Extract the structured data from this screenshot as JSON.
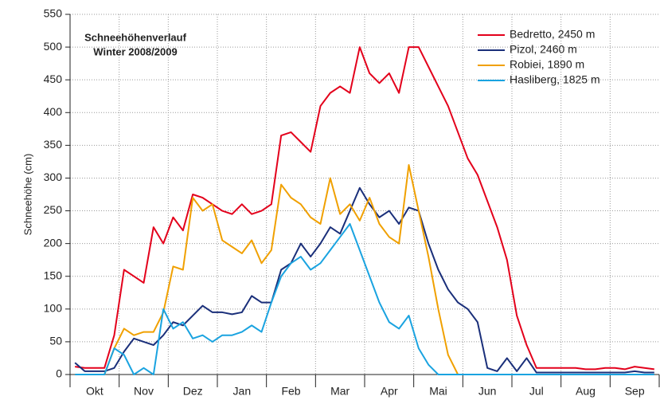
{
  "chart_data": {
    "type": "line",
    "title": "Schneehöhenverlauf",
    "subtitle": "Winter 2008/2009",
    "y_label": "Schneehöhe (cm)",
    "categories": [
      null,
      null,
      "Okt",
      null,
      null,
      null,
      null,
      "Nov",
      null,
      null,
      null,
      null,
      "Dez",
      null,
      null,
      null,
      null,
      "Jan",
      null,
      null,
      null,
      null,
      "Feb",
      null,
      null,
      null,
      null,
      "Mar",
      null,
      null,
      null,
      null,
      "Apr",
      null,
      null,
      null,
      null,
      "Mai",
      null,
      null,
      null,
      null,
      "Jun",
      null,
      null,
      null,
      null,
      "Jul",
      null,
      null,
      null,
      null,
      "Aug",
      null,
      null,
      null,
      null,
      "Sep",
      null,
      null
    ],
    "series": [
      {
        "name": "Bedretto, 2450 m",
        "color": "#e3001b",
        "values": [
          12,
          10,
          10,
          10,
          60,
          160,
          150,
          140,
          225,
          200,
          240,
          220,
          275,
          270,
          260,
          250,
          245,
          260,
          245,
          250,
          260,
          365,
          370,
          355,
          340,
          410,
          430,
          440,
          430,
          500,
          460,
          445,
          460,
          430,
          500,
          500,
          470,
          440,
          410,
          370,
          330,
          305,
          265,
          225,
          175,
          90,
          45,
          10,
          10,
          10,
          10,
          10,
          8,
          8,
          10,
          10,
          8,
          12,
          10,
          8
        ]
      },
      {
        "name": "Pizol, 2460 m",
        "color": "#1a2f7a",
        "values": [
          18,
          5,
          5,
          5,
          10,
          35,
          55,
          50,
          45,
          60,
          80,
          75,
          90,
          105,
          95,
          95,
          92,
          95,
          120,
          110,
          110,
          160,
          170,
          200,
          180,
          200,
          225,
          215,
          250,
          285,
          260,
          240,
          250,
          230,
          255,
          250,
          200,
          160,
          130,
          110,
          100,
          80,
          10,
          5,
          25,
          5,
          25,
          3,
          3,
          3,
          3,
          3,
          3,
          3,
          3,
          3,
          3,
          5,
          3,
          3
        ]
      },
      {
        "name": "Robiei, 1890 m",
        "color": "#f0a000",
        "values": [
          0,
          0,
          0,
          0,
          40,
          70,
          60,
          65,
          65,
          95,
          165,
          160,
          270,
          250,
          260,
          205,
          195,
          185,
          205,
          170,
          190,
          290,
          270,
          260,
          240,
          230,
          300,
          245,
          260,
          235,
          270,
          230,
          210,
          200,
          320,
          250,
          180,
          100,
          30,
          0,
          0,
          0,
          0,
          0,
          0,
          0,
          0,
          0,
          0,
          0,
          0,
          0,
          0,
          0,
          0,
          0,
          0,
          0,
          0,
          0
        ]
      },
      {
        "name": "Hasliberg, 1825 m",
        "color": "#1aa3e0",
        "values": [
          0,
          0,
          0,
          0,
          40,
          30,
          0,
          10,
          0,
          100,
          70,
          80,
          55,
          60,
          50,
          60,
          60,
          65,
          75,
          65,
          110,
          150,
          170,
          180,
          160,
          170,
          190,
          210,
          230,
          190,
          150,
          110,
          80,
          70,
          90,
          40,
          15,
          0,
          0,
          0,
          0,
          0,
          0,
          0,
          0,
          0,
          0,
          0,
          0,
          0,
          0,
          0,
          0,
          0,
          0,
          0,
          0,
          0,
          0,
          0
        ]
      }
    ],
    "ylim": [
      0,
      550
    ],
    "yticks": [
      0,
      50,
      100,
      150,
      200,
      250,
      300,
      350,
      400,
      450,
      500,
      550
    ],
    "grid": true,
    "legend": "top-right"
  }
}
